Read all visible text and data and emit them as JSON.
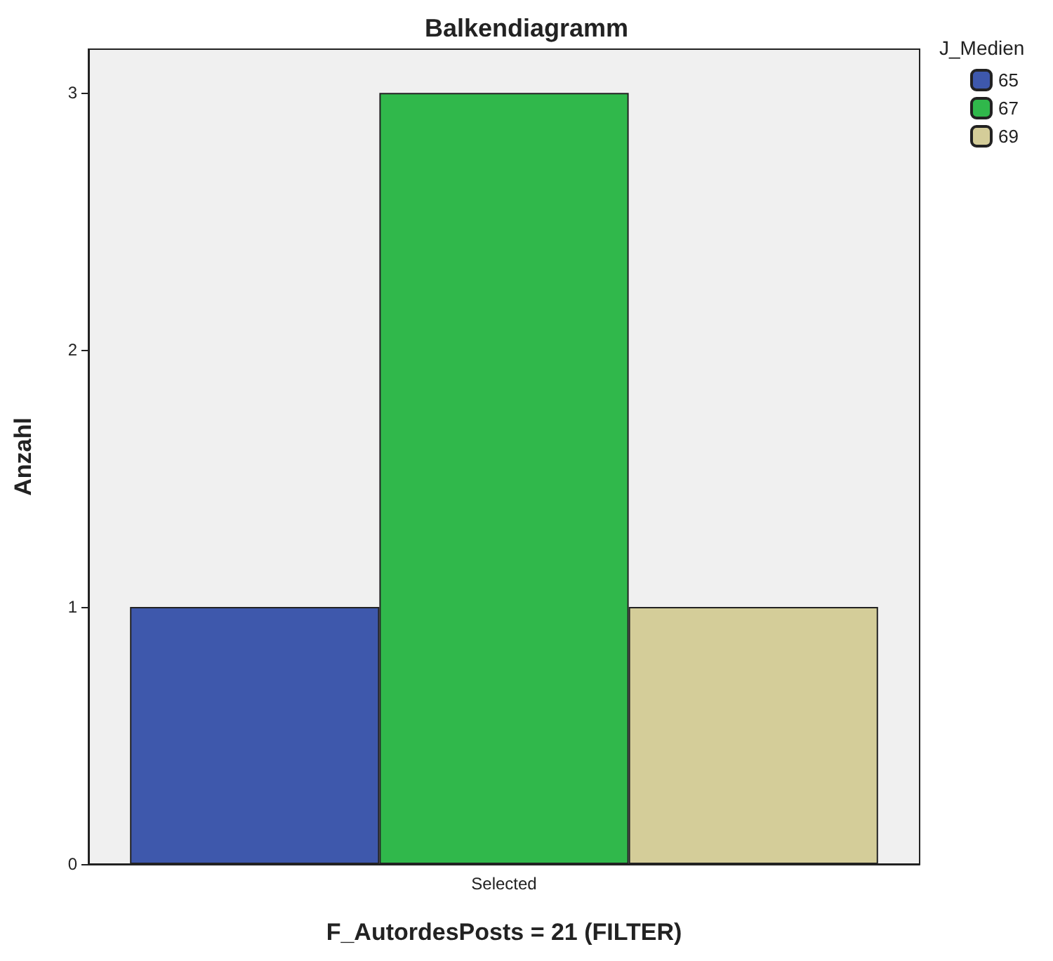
{
  "chart_data": {
    "type": "bar",
    "title": "Balkendiagramm",
    "xlabel": "F_AutordesPosts = 21 (FILTER)",
    "ylabel": "Anzahl",
    "legend_title": "J_Medien",
    "categories": [
      "Selected"
    ],
    "series": [
      {
        "name": "65",
        "color": "#3e58ac",
        "values": [
          1
        ]
      },
      {
        "name": "67",
        "color": "#30b84b",
        "values": [
          3
        ]
      },
      {
        "name": "69",
        "color": "#d4cd99",
        "values": [
          1
        ]
      }
    ],
    "ylim": [
      0,
      3.17
    ],
    "yticks": [
      0,
      1,
      2,
      3
    ],
    "grid": false,
    "legend": "top right"
  }
}
